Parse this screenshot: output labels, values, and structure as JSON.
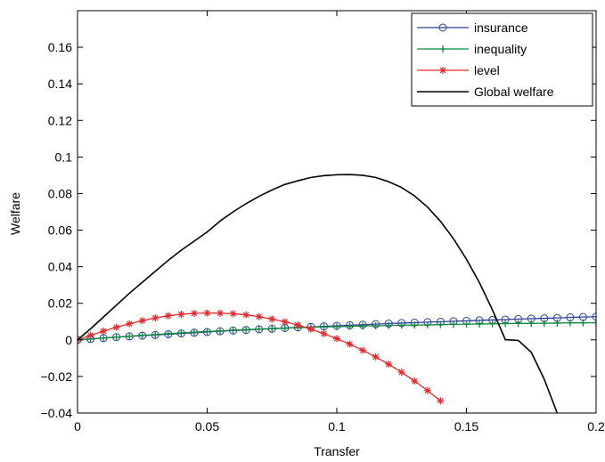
{
  "chart_data": {
    "type": "line",
    "xlabel": "Transfer",
    "ylabel": "Welfare",
    "xlim": [
      0,
      0.2
    ],
    "ylim": [
      -0.04,
      0.18
    ],
    "xticks": [
      {
        "value": 0,
        "label": "0"
      },
      {
        "value": 0.05,
        "label": "0.05"
      },
      {
        "value": 0.1,
        "label": "0.1"
      },
      {
        "value": 0.15,
        "label": "0.15"
      },
      {
        "value": 0.2,
        "label": "0.2"
      }
    ],
    "yticks": [
      {
        "value": -0.04,
        "label": "−0.04"
      },
      {
        "value": -0.02,
        "label": "−0.02"
      },
      {
        "value": 0,
        "label": "0"
      },
      {
        "value": 0.02,
        "label": "0.02"
      },
      {
        "value": 0.04,
        "label": "0.04"
      },
      {
        "value": 0.06,
        "label": "0.06"
      },
      {
        "value": 0.08,
        "label": "0.08"
      },
      {
        "value": 0.1,
        "label": "0.1"
      },
      {
        "value": 0.12,
        "label": "0.12"
      },
      {
        "value": 0.14,
        "label": "0.14"
      },
      {
        "value": 0.16,
        "label": "0.16"
      }
    ],
    "grid": false,
    "legend_position": "top-right",
    "series": [
      {
        "name": "insurance",
        "color": "#2b3f9e",
        "marker": "circle",
        "x": [
          0,
          0.005,
          0.01,
          0.015,
          0.02,
          0.025,
          0.03,
          0.035,
          0.04,
          0.045,
          0.05,
          0.055,
          0.06,
          0.065,
          0.07,
          0.075,
          0.08,
          0.085,
          0.09,
          0.095,
          0.1,
          0.105,
          0.11,
          0.115,
          0.12,
          0.125,
          0.13,
          0.135,
          0.14,
          0.145,
          0.15,
          0.155,
          0.16,
          0.165,
          0.17,
          0.175,
          0.18,
          0.185,
          0.19,
          0.195,
          0.2
        ],
        "y": [
          0,
          0.0005,
          0.001,
          0.0015,
          0.0019,
          0.0023,
          0.0027,
          0.0031,
          0.0035,
          0.0039,
          0.0043,
          0.0047,
          0.0051,
          0.0054,
          0.0058,
          0.0061,
          0.0065,
          0.0068,
          0.0071,
          0.0074,
          0.0077,
          0.008,
          0.0083,
          0.0086,
          0.0089,
          0.0092,
          0.0094,
          0.0097,
          0.0099,
          0.0102,
          0.0104,
          0.0107,
          0.0109,
          0.0111,
          0.0114,
          0.0116,
          0.0118,
          0.012,
          0.0123,
          0.0125,
          0.0127
        ]
      },
      {
        "name": "inequality",
        "color": "#0b8a3c",
        "marker": "plus",
        "x": [
          0,
          0.005,
          0.01,
          0.015,
          0.02,
          0.025,
          0.03,
          0.035,
          0.04,
          0.045,
          0.05,
          0.055,
          0.06,
          0.065,
          0.07,
          0.075,
          0.08,
          0.085,
          0.09,
          0.095,
          0.1,
          0.105,
          0.11,
          0.115,
          0.12,
          0.125,
          0.13,
          0.135,
          0.14,
          0.145,
          0.15,
          0.155,
          0.16,
          0.165,
          0.17,
          0.175,
          0.18,
          0.185,
          0.19,
          0.195,
          0.2
        ],
        "y": [
          0,
          0.0005,
          0.001,
          0.0015,
          0.002,
          0.0025,
          0.0029,
          0.0034,
          0.0038,
          0.0042,
          0.0046,
          0.0049,
          0.0053,
          0.0056,
          0.0059,
          0.0062,
          0.0064,
          0.0067,
          0.0069,
          0.0071,
          0.0072,
          0.0074,
          0.0076,
          0.0077,
          0.0079,
          0.008,
          0.0081,
          0.0082,
          0.0084,
          0.0085,
          0.0086,
          0.0087,
          0.0088,
          0.0089,
          0.009,
          0.009,
          0.0091,
          0.0092,
          0.0093,
          0.0093,
          0.0094
        ]
      },
      {
        "name": "level",
        "color": "#e8292b",
        "marker": "asterisk",
        "x": [
          0,
          0.005,
          0.01,
          0.015,
          0.02,
          0.025,
          0.03,
          0.035,
          0.04,
          0.045,
          0.05,
          0.055,
          0.06,
          0.065,
          0.07,
          0.075,
          0.08,
          0.085,
          0.09,
          0.095,
          0.1,
          0.105,
          0.11,
          0.115,
          0.12,
          0.125,
          0.13,
          0.135,
          0.14
        ],
        "y": [
          0,
          0.0025,
          0.0048,
          0.0069,
          0.0088,
          0.0105,
          0.012,
          0.0132,
          0.014,
          0.0145,
          0.0147,
          0.0146,
          0.0143,
          0.0137,
          0.0127,
          0.0114,
          0.0099,
          0.0081,
          0.0059,
          0.0034,
          0.0007,
          -0.0023,
          -0.0057,
          -0.0093,
          -0.0133,
          -0.0177,
          -0.0225,
          -0.0277,
          -0.0333
        ]
      },
      {
        "name": "Global welfare",
        "color": "#000000",
        "marker": "none",
        "x": [
          0,
          0.005,
          0.01,
          0.015,
          0.02,
          0.025,
          0.03,
          0.035,
          0.04,
          0.045,
          0.05,
          0.055,
          0.06,
          0.065,
          0.07,
          0.075,
          0.08,
          0.085,
          0.09,
          0.095,
          0.1,
          0.105,
          0.11,
          0.115,
          0.12,
          0.125,
          0.13,
          0.135,
          0.14,
          0.145,
          0.15,
          0.155,
          0.16,
          0.165,
          0.17,
          0.175,
          0.18,
          0.185
        ],
        "y": [
          0,
          0.006,
          0.0125,
          0.019,
          0.0255,
          0.0315,
          0.0375,
          0.0435,
          0.049,
          0.054,
          0.059,
          0.065,
          0.07,
          0.0745,
          0.0785,
          0.082,
          0.085,
          0.087,
          0.0888,
          0.0898,
          0.0903,
          0.0904,
          0.09,
          0.0888,
          0.0865,
          0.0833,
          0.0787,
          0.0726,
          0.0648,
          0.0553,
          0.0441,
          0.0313,
          0.0165,
          0.0001,
          -0.0003,
          -0.0068,
          -0.0215,
          -0.04
        ]
      }
    ]
  }
}
